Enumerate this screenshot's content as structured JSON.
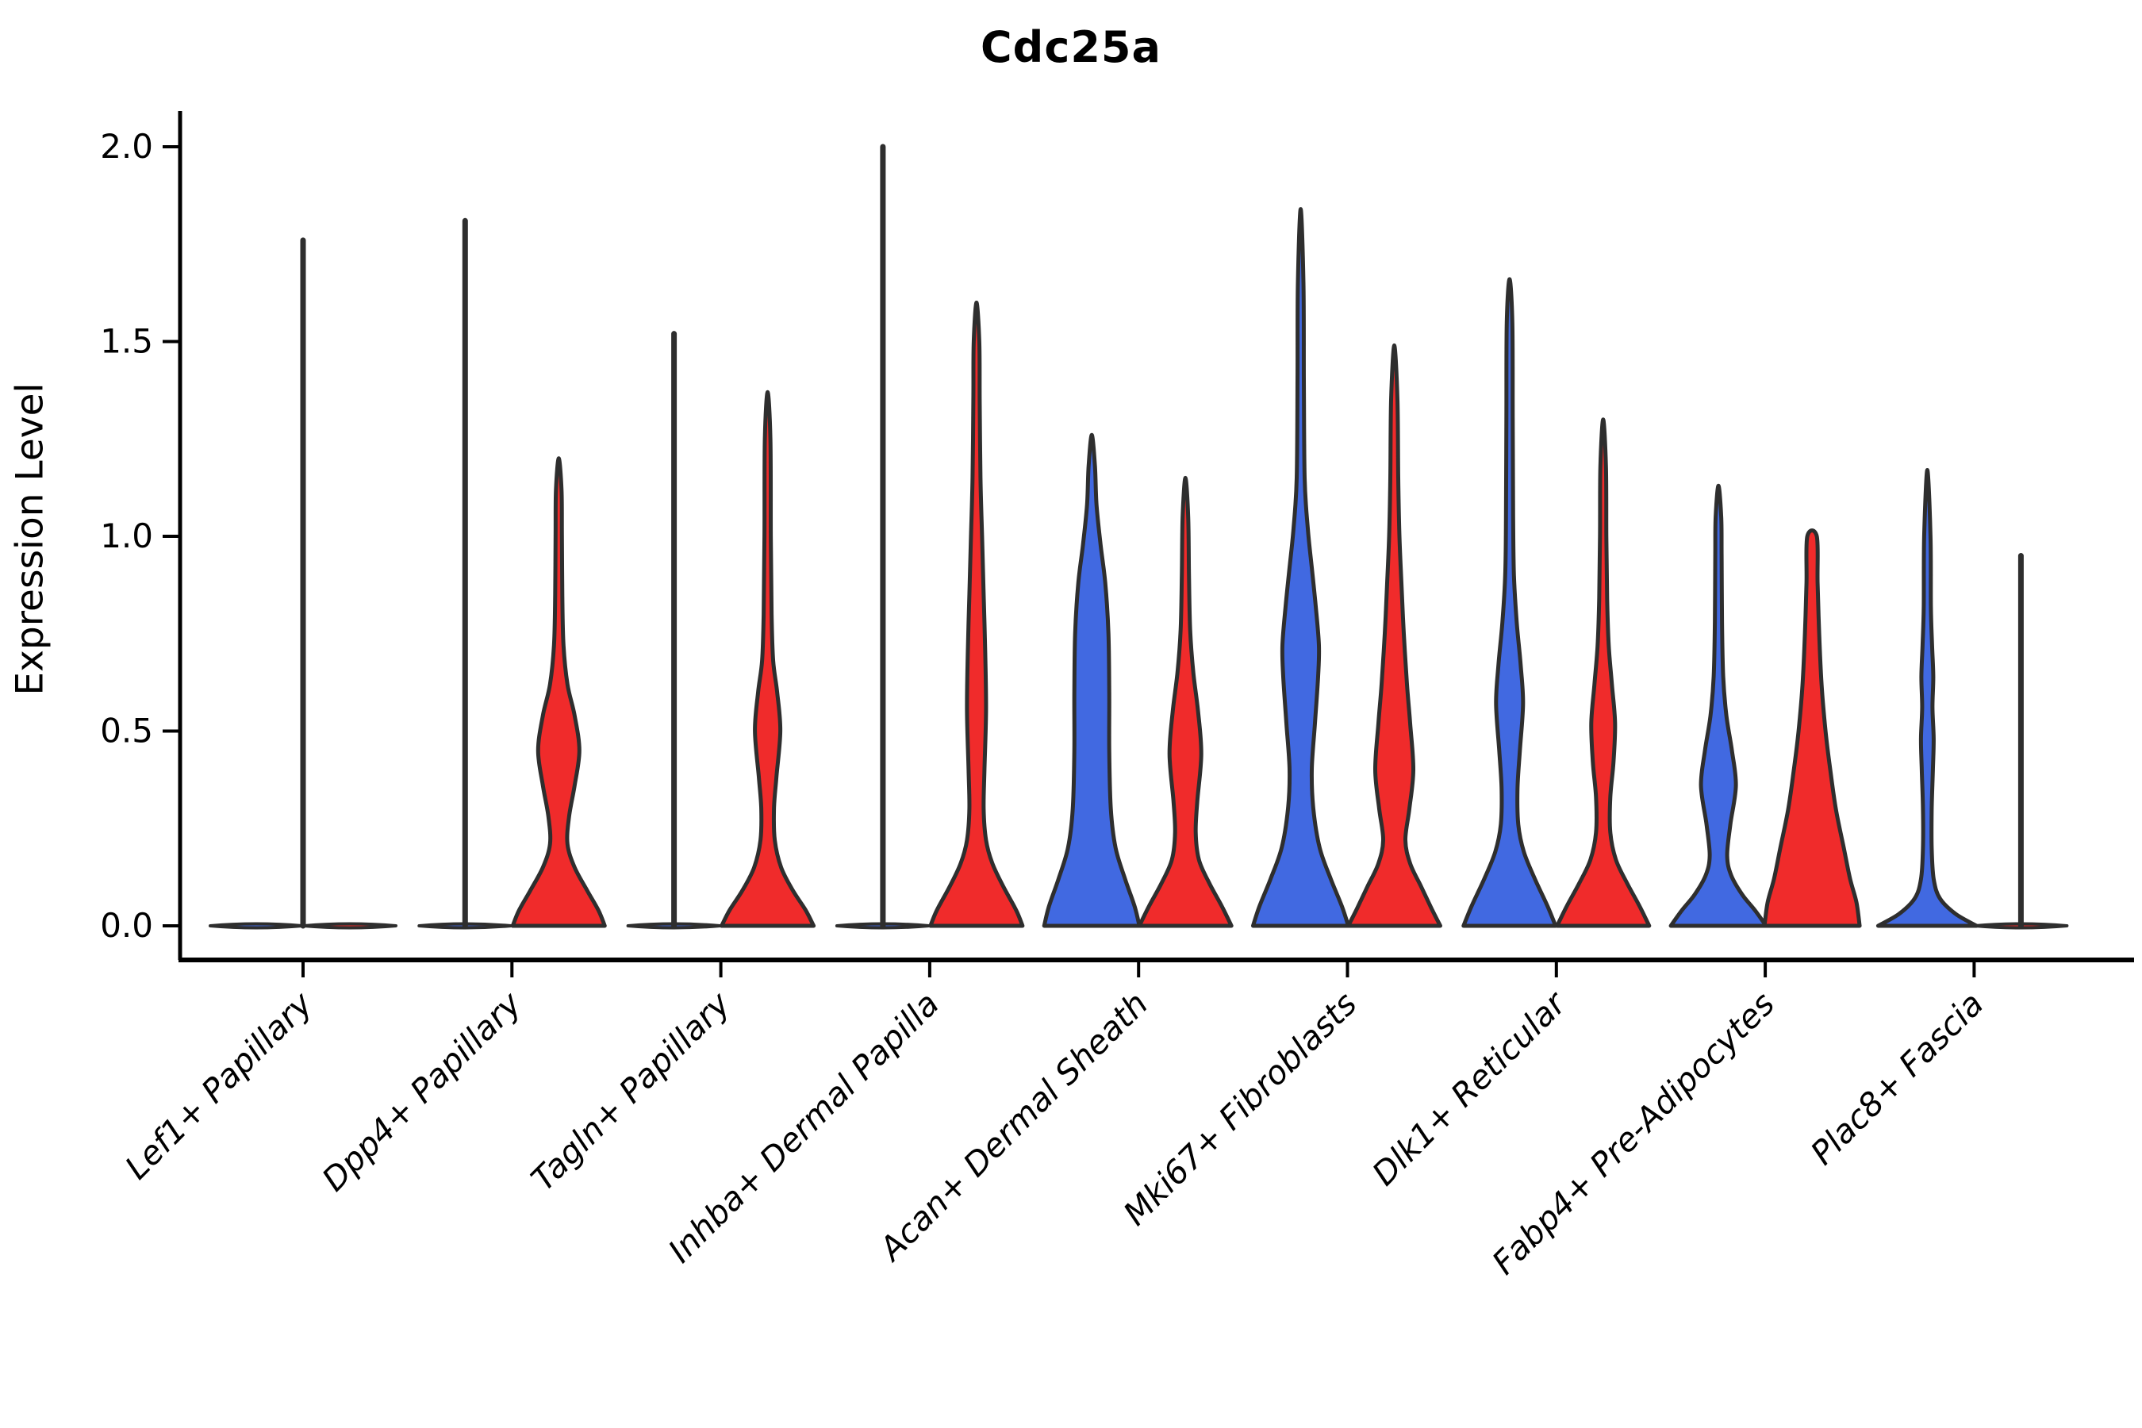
{
  "chart_data": {
    "type": "violin",
    "title": "Cdc25a",
    "ylabel": "Expression Level",
    "xlabel": "",
    "ylim": [
      0.0,
      2.05
    ],
    "grid": false,
    "legend": "none",
    "colors": {
      "blue": "#4169E1",
      "red": "#F02B2B",
      "outline": "#2E2E2E"
    },
    "groups": [
      "blue",
      "red"
    ],
    "yticks": [
      {
        "value": 0.0,
        "label": "0.0"
      },
      {
        "value": 0.5,
        "label": "0.5"
      },
      {
        "value": 1.0,
        "label": "1.0"
      },
      {
        "value": 1.5,
        "label": "1.5"
      },
      {
        "value": 2.0,
        "label": "2.0"
      }
    ],
    "layout": {
      "y0": 1167,
      "unit": 491,
      "x0": 382,
      "dx": 263.3,
      "spine_x": 227,
      "spine_top": 140,
      "spine_bottom": 1210,
      "spine_right": 2690,
      "ytick_len": 22,
      "xtick_len": 22,
      "flat_halfwidth": 58,
      "violin_offset": 59,
      "outline_width": 5,
      "stem_width": 7
    },
    "categories": [
      {
        "label": "Lef1+ Papillary",
        "violins": [
          {
            "group": "blue",
            "offset": -59,
            "flat": true,
            "max": 0.0
          },
          {
            "group": "red",
            "offset": 59,
            "flat": true,
            "max": 0.0
          }
        ],
        "stems": [
          {
            "offset": 0,
            "top": 1.76
          }
        ]
      },
      {
        "label": "Dpp4+ Papillary",
        "violins": [
          {
            "group": "blue",
            "offset": -59,
            "flat": true,
            "max": 0.0
          },
          {
            "group": "red",
            "offset": 59,
            "flat": false,
            "max": 1.2,
            "profile": [
              [
                0,
                58
              ],
              [
                0.04,
                50
              ],
              [
                0.09,
                36
              ],
              [
                0.15,
                20
              ],
              [
                0.21,
                11
              ],
              [
                0.28,
                13
              ],
              [
                0.36,
                20
              ],
              [
                0.45,
                26
              ],
              [
                0.54,
                20
              ],
              [
                0.62,
                11
              ],
              [
                0.72,
                6
              ],
              [
                0.85,
                4.5
              ],
              [
                1.0,
                4
              ],
              [
                1.12,
                3.5
              ],
              [
                1.2,
                0
              ]
            ]
          }
        ],
        "stems": [
          {
            "offset": -59,
            "top": 1.81
          }
        ]
      },
      {
        "label": "Tagln+ Papillary",
        "violins": [
          {
            "group": "blue",
            "offset": -59,
            "flat": true,
            "max": 0.0
          },
          {
            "group": "red",
            "offset": 59,
            "flat": false,
            "max": 1.37,
            "profile": [
              [
                0,
                58
              ],
              [
                0.04,
                48
              ],
              [
                0.09,
                32
              ],
              [
                0.15,
                17
              ],
              [
                0.22,
                9
              ],
              [
                0.3,
                8
              ],
              [
                0.38,
                11
              ],
              [
                0.5,
                16
              ],
              [
                0.6,
                12
              ],
              [
                0.68,
                7
              ],
              [
                0.8,
                5
              ],
              [
                1.0,
                4
              ],
              [
                1.25,
                3.5
              ],
              [
                1.37,
                0
              ]
            ]
          }
        ],
        "stems": [
          {
            "offset": -59,
            "top": 1.52
          }
        ]
      },
      {
        "label": "Inhba+ Dermal Papilla",
        "violins": [
          {
            "group": "blue",
            "offset": -59,
            "flat": true,
            "max": 0.0
          },
          {
            "group": "red",
            "offset": 59,
            "flat": false,
            "max": 1.6,
            "profile": [
              [
                0,
                58
              ],
              [
                0.04,
                50
              ],
              [
                0.1,
                34
              ],
              [
                0.16,
                20
              ],
              [
                0.22,
                12
              ],
              [
                0.3,
                9
              ],
              [
                0.4,
                10
              ],
              [
                0.55,
                12
              ],
              [
                0.7,
                11
              ],
              [
                0.85,
                9
              ],
              [
                1.0,
                7
              ],
              [
                1.15,
                5
              ],
              [
                1.35,
                4
              ],
              [
                1.5,
                3.5
              ],
              [
                1.6,
                0
              ]
            ]
          }
        ],
        "stems": [
          {
            "offset": -59,
            "top": 2.0
          }
        ]
      },
      {
        "label": "Acan+ Dermal Sheath",
        "violins": [
          {
            "group": "blue",
            "offset": -59,
            "flat": false,
            "max": 1.26,
            "profile": [
              [
                0,
                60
              ],
              [
                0.05,
                54
              ],
              [
                0.12,
                42
              ],
              [
                0.2,
                30
              ],
              [
                0.3,
                24
              ],
              [
                0.45,
                22
              ],
              [
                0.6,
                22
              ],
              [
                0.75,
                21
              ],
              [
                0.88,
                17
              ],
              [
                0.98,
                11
              ],
              [
                1.08,
                6
              ],
              [
                1.18,
                4
              ],
              [
                1.26,
                0
              ]
            ]
          },
          {
            "group": "red",
            "offset": 59,
            "flat": false,
            "max": 1.15,
            "profile": [
              [
                0,
                58
              ],
              [
                0.05,
                46
              ],
              [
                0.11,
                30
              ],
              [
                0.17,
                17
              ],
              [
                0.24,
                13
              ],
              [
                0.32,
                15
              ],
              [
                0.44,
                20
              ],
              [
                0.55,
                16
              ],
              [
                0.65,
                10
              ],
              [
                0.76,
                6
              ],
              [
                0.9,
                4.5
              ],
              [
                1.05,
                3.5
              ],
              [
                1.15,
                0
              ]
            ]
          }
        ],
        "stems": []
      },
      {
        "label": "Mki67+ Fibroblasts",
        "violins": [
          {
            "group": "blue",
            "offset": -59,
            "flat": false,
            "max": 1.84,
            "profile": [
              [
                0,
                60
              ],
              [
                0.05,
                52
              ],
              [
                0.12,
                38
              ],
              [
                0.2,
                24
              ],
              [
                0.3,
                16
              ],
              [
                0.4,
                14
              ],
              [
                0.52,
                18
              ],
              [
                0.64,
                22
              ],
              [
                0.72,
                23
              ],
              [
                0.82,
                19
              ],
              [
                0.92,
                14
              ],
              [
                1.02,
                9
              ],
              [
                1.15,
                5
              ],
              [
                1.4,
                4
              ],
              [
                1.65,
                3.5
              ],
              [
                1.84,
                0
              ]
            ]
          },
          {
            "group": "red",
            "offset": 59,
            "flat": false,
            "max": 1.49,
            "profile": [
              [
                0,
                58
              ],
              [
                0.04,
                48
              ],
              [
                0.1,
                34
              ],
              [
                0.16,
                20
              ],
              [
                0.22,
                14
              ],
              [
                0.3,
                19
              ],
              [
                0.4,
                24
              ],
              [
                0.52,
                20
              ],
              [
                0.62,
                16
              ],
              [
                0.75,
                12
              ],
              [
                0.88,
                9
              ],
              [
                1.0,
                6.5
              ],
              [
                1.15,
                5
              ],
              [
                1.35,
                4
              ],
              [
                1.49,
                0
              ]
            ]
          }
        ],
        "stems": []
      },
      {
        "label": "Dlk1+ Reticular",
        "violins": [
          {
            "group": "blue",
            "offset": -59,
            "flat": false,
            "max": 1.66,
            "profile": [
              [
                0,
                58
              ],
              [
                0.05,
                48
              ],
              [
                0.12,
                32
              ],
              [
                0.19,
                18
              ],
              [
                0.26,
                11
              ],
              [
                0.35,
                10
              ],
              [
                0.45,
                13
              ],
              [
                0.57,
                17
              ],
              [
                0.67,
                14
              ],
              [
                0.78,
                9
              ],
              [
                0.9,
                5.5
              ],
              [
                1.05,
                4.5
              ],
              [
                1.3,
                4
              ],
              [
                1.55,
                3.5
              ],
              [
                1.66,
                0
              ]
            ]
          },
          {
            "group": "red",
            "offset": 59,
            "flat": false,
            "max": 1.3,
            "profile": [
              [
                0,
                58
              ],
              [
                0.05,
                46
              ],
              [
                0.11,
                30
              ],
              [
                0.17,
                16
              ],
              [
                0.24,
                9
              ],
              [
                0.33,
                9
              ],
              [
                0.42,
                13
              ],
              [
                0.52,
                15
              ],
              [
                0.62,
                11
              ],
              [
                0.72,
                7
              ],
              [
                0.84,
                5
              ],
              [
                1.0,
                4
              ],
              [
                1.18,
                3.5
              ],
              [
                1.3,
                0
              ]
            ]
          }
        ],
        "stems": []
      },
      {
        "label": "Fabp4+ Pre-Adipocytes",
        "violins": [
          {
            "group": "blue",
            "offset": -59,
            "flat": false,
            "max": 1.13,
            "profile": [
              [
                0,
                60
              ],
              [
                0.04,
                46
              ],
              [
                0.08,
                30
              ],
              [
                0.13,
                16
              ],
              [
                0.18,
                11
              ],
              [
                0.26,
                15
              ],
              [
                0.36,
                22
              ],
              [
                0.45,
                17
              ],
              [
                0.54,
                10
              ],
              [
                0.64,
                6
              ],
              [
                0.78,
                4.5
              ],
              [
                0.95,
                4
              ],
              [
                1.05,
                3.5
              ],
              [
                1.13,
                0
              ]
            ]
          },
          {
            "group": "red",
            "offset": 59,
            "flat": false,
            "max": 1.0,
            "flat_top": true,
            "profile": [
              [
                0,
                60
              ],
              [
                0.06,
                56
              ],
              [
                0.12,
                48
              ],
              [
                0.2,
                40
              ],
              [
                0.3,
                30
              ],
              [
                0.4,
                23
              ],
              [
                0.5,
                17
              ],
              [
                0.62,
                12
              ],
              [
                0.75,
                9
              ],
              [
                0.88,
                7
              ],
              [
                1.0,
                6
              ]
            ]
          }
        ],
        "stems": []
      },
      {
        "label": "Plac8+ Fascia",
        "violins": [
          {
            "group": "blue",
            "offset": -59,
            "flat": false,
            "max": 1.17,
            "profile": [
              [
                0,
                62
              ],
              [
                0.03,
                36
              ],
              [
                0.07,
                16
              ],
              [
                0.12,
                8
              ],
              [
                0.2,
                5.5
              ],
              [
                0.3,
                5.5
              ],
              [
                0.4,
                7
              ],
              [
                0.48,
                8
              ],
              [
                0.56,
                6.5
              ],
              [
                0.64,
                7.5
              ],
              [
                0.72,
                6
              ],
              [
                0.82,
                4.5
              ],
              [
                1.0,
                4
              ],
              [
                1.17,
                0
              ]
            ]
          },
          {
            "group": "red",
            "offset": 59,
            "flat": true,
            "max": 0.0
          }
        ],
        "stems": [
          {
            "offset": 59,
            "top": 0.95
          }
        ]
      }
    ]
  }
}
